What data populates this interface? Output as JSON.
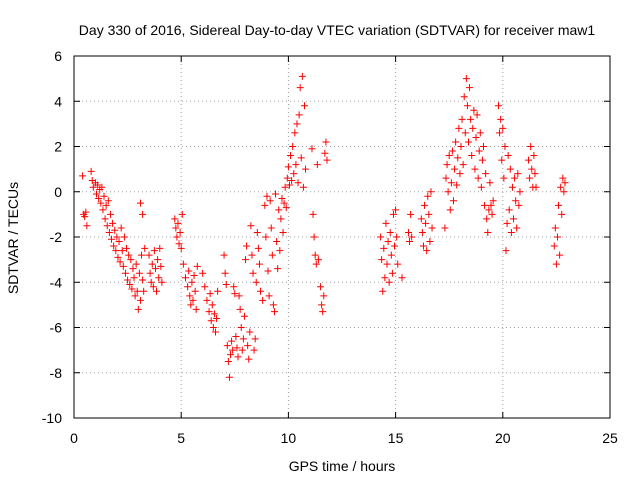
{
  "chart_data": {
    "type": "scatter",
    "title": "Day 330 of 2016, Sidereal Day-to-day VTEC variation (SDTVAR) for receiver maw1",
    "xlabel": "GPS time / hours",
    "ylabel": "SDTVAR / TECUs",
    "xlim": [
      0,
      25
    ],
    "ylim": [
      -10,
      6
    ],
    "xticks": [
      0,
      5,
      10,
      15,
      20,
      25
    ],
    "yticks": [
      -10,
      -8,
      -6,
      -4,
      -2,
      0,
      2,
      4,
      6
    ],
    "xtick_labels": [
      "0",
      "5",
      "10",
      "15",
      "20",
      "25"
    ],
    "ytick_labels": [
      "-10",
      "-8",
      "-6",
      "-4",
      "-2",
      "0",
      "2",
      "4",
      "6"
    ],
    "grid": true,
    "marker": "+",
    "color": "#ff0000",
    "series": [
      {
        "name": "maw1",
        "points": [
          [
            0.4,
            0.7
          ],
          [
            0.45,
            -1.0
          ],
          [
            0.5,
            -1.1
          ],
          [
            0.55,
            -0.9
          ],
          [
            0.6,
            -1.5
          ],
          [
            0.8,
            0.9
          ],
          [
            0.85,
            0.5
          ],
          [
            0.9,
            0.2
          ],
          [
            1.0,
            0.4
          ],
          [
            1.05,
            -0.1
          ],
          [
            1.1,
            0.3
          ],
          [
            1.15,
            -0.3
          ],
          [
            1.2,
            0.1
          ],
          [
            1.25,
            -0.5
          ],
          [
            1.3,
            0.2
          ],
          [
            1.35,
            -0.8
          ],
          [
            1.4,
            -0.2
          ],
          [
            1.45,
            -1.2
          ],
          [
            1.5,
            -0.6
          ],
          [
            1.55,
            -1.5
          ],
          [
            1.6,
            -0.4
          ],
          [
            1.65,
            -1.8
          ],
          [
            1.7,
            -1.0
          ],
          [
            1.75,
            -2.1
          ],
          [
            1.8,
            -1.4
          ],
          [
            1.85,
            -2.4
          ],
          [
            1.9,
            -1.7
          ],
          [
            1.95,
            -2.6
          ],
          [
            2.0,
            -2.0
          ],
          [
            2.05,
            -2.9
          ],
          [
            2.1,
            -2.2
          ],
          [
            2.15,
            -3.1
          ],
          [
            2.2,
            -1.6
          ],
          [
            2.25,
            -2.6
          ],
          [
            2.3,
            -3.3
          ],
          [
            2.35,
            -2.0
          ],
          [
            2.4,
            -3.6
          ],
          [
            2.45,
            -2.5
          ],
          [
            2.5,
            -3.9
          ],
          [
            2.55,
            -2.8
          ],
          [
            2.6,
            -4.1
          ],
          [
            2.65,
            -3.0
          ],
          [
            2.7,
            -4.3
          ],
          [
            2.75,
            -3.4
          ],
          [
            2.8,
            -3.8
          ],
          [
            2.85,
            -4.6
          ],
          [
            2.9,
            -3.2
          ],
          [
            2.95,
            -4.4
          ],
          [
            3.0,
            -5.2
          ],
          [
            3.05,
            -3.6
          ],
          [
            3.1,
            -4.8
          ],
          [
            3.15,
            -2.8
          ],
          [
            3.2,
            -3.9
          ],
          [
            3.25,
            -4.4
          ],
          [
            3.1,
            -0.5
          ],
          [
            3.2,
            -1.0
          ],
          [
            3.3,
            -2.5
          ],
          [
            3.5,
            -2.8
          ],
          [
            3.55,
            -3.6
          ],
          [
            3.6,
            -4.0
          ],
          [
            3.65,
            -3.2
          ],
          [
            3.7,
            -4.2
          ],
          [
            3.75,
            -2.6
          ],
          [
            3.8,
            -3.4
          ],
          [
            3.85,
            -4.4
          ],
          [
            3.9,
            -3.0
          ],
          [
            3.95,
            -3.8
          ],
          [
            4.0,
            -2.5
          ],
          [
            4.05,
            -3.3
          ],
          [
            4.1,
            -4.0
          ],
          [
            4.7,
            -1.2
          ],
          [
            4.75,
            -1.6
          ],
          [
            4.8,
            -2.0
          ],
          [
            4.85,
            -1.4
          ],
          [
            4.9,
            -2.3
          ],
          [
            4.95,
            -1.8
          ],
          [
            5.0,
            -2.5
          ],
          [
            5.05,
            -1.0
          ],
          [
            5.1,
            -3.2
          ],
          [
            5.2,
            -3.8
          ],
          [
            5.3,
            -4.2
          ],
          [
            5.35,
            -3.5
          ],
          [
            5.4,
            -4.6
          ],
          [
            5.45,
            -5.0
          ],
          [
            5.5,
            -4.0
          ],
          [
            5.55,
            -4.8
          ],
          [
            5.6,
            -3.7
          ],
          [
            5.65,
            -4.4
          ],
          [
            5.7,
            -5.2
          ],
          [
            5.75,
            -3.3
          ],
          [
            6.0,
            -3.6
          ],
          [
            6.1,
            -4.2
          ],
          [
            6.2,
            -4.8
          ],
          [
            6.3,
            -5.3
          ],
          [
            6.35,
            -4.5
          ],
          [
            6.4,
            -5.7
          ],
          [
            6.45,
            -5.0
          ],
          [
            6.5,
            -6.0
          ],
          [
            6.55,
            -5.4
          ],
          [
            6.6,
            -6.2
          ],
          [
            6.65,
            -5.6
          ],
          [
            6.7,
            -4.4
          ],
          [
            7.0,
            -2.8
          ],
          [
            7.05,
            -3.6
          ],
          [
            7.1,
            -4.1
          ],
          [
            7.15,
            -6.8
          ],
          [
            7.2,
            -7.5
          ],
          [
            7.25,
            -8.2
          ],
          [
            7.3,
            -7.2
          ],
          [
            7.35,
            -6.6
          ],
          [
            7.4,
            -7.0
          ],
          [
            7.45,
            -4.2
          ],
          [
            7.5,
            -4.5
          ],
          [
            7.55,
            -6.4
          ],
          [
            7.6,
            -6.9
          ],
          [
            7.65,
            -7.3
          ],
          [
            7.7,
            -4.6
          ],
          [
            7.75,
            -5.2
          ],
          [
            7.8,
            -6.0
          ],
          [
            7.85,
            -7.0
          ],
          [
            7.9,
            -6.5
          ],
          [
            7.95,
            -5.5
          ],
          [
            8.0,
            -3.0
          ],
          [
            8.05,
            -2.4
          ],
          [
            8.1,
            -6.8
          ],
          [
            8.15,
            -7.4
          ],
          [
            8.2,
            -6.2
          ],
          [
            8.25,
            -1.5
          ],
          [
            8.3,
            -2.8
          ],
          [
            8.35,
            -3.6
          ],
          [
            8.4,
            -7.0
          ],
          [
            8.45,
            -6.5
          ],
          [
            8.5,
            -4.0
          ],
          [
            8.55,
            -1.8
          ],
          [
            8.6,
            -2.5
          ],
          [
            8.65,
            -3.2
          ],
          [
            8.7,
            -4.4
          ],
          [
            8.8,
            -4.8
          ],
          [
            8.9,
            -0.6
          ],
          [
            8.95,
            -2.0
          ],
          [
            9.0,
            -0.2
          ],
          [
            9.05,
            -3.5
          ],
          [
            9.1,
            -4.6
          ],
          [
            9.15,
            -0.4
          ],
          [
            9.2,
            -1.6
          ],
          [
            9.25,
            -2.8
          ],
          [
            9.3,
            -5.0
          ],
          [
            9.35,
            -5.3
          ],
          [
            9.4,
            -0.1
          ],
          [
            9.45,
            -2.2
          ],
          [
            9.5,
            -3.4
          ],
          [
            9.55,
            -0.8
          ],
          [
            9.6,
            -2.6
          ],
          [
            9.65,
            -1.2
          ],
          [
            9.7,
            -0.3
          ],
          [
            9.75,
            -1.8
          ],
          [
            9.8,
            -0.5
          ],
          [
            9.85,
            0.2
          ],
          [
            9.9,
            -0.7
          ],
          [
            9.95,
            0.6
          ],
          [
            10.0,
            1.1
          ],
          [
            10.05,
            0.3
          ],
          [
            10.1,
            1.6
          ],
          [
            10.15,
            0.5
          ],
          [
            10.2,
            2.0
          ],
          [
            10.25,
            0.8
          ],
          [
            10.3,
            2.6
          ],
          [
            10.35,
            1.2
          ],
          [
            10.4,
            3.0
          ],
          [
            10.45,
            0.4
          ],
          [
            10.5,
            3.4
          ],
          [
            10.55,
            4.6
          ],
          [
            10.6,
            1.5
          ],
          [
            10.65,
            5.1
          ],
          [
            10.7,
            0.2
          ],
          [
            10.75,
            3.8
          ],
          [
            10.8,
            1.0
          ],
          [
            11.1,
            1.9
          ],
          [
            11.15,
            -1.0
          ],
          [
            11.2,
            -2.0
          ],
          [
            11.25,
            -2.8
          ],
          [
            11.3,
            -3.2
          ],
          [
            11.35,
            1.2
          ],
          [
            11.4,
            -3.0
          ],
          [
            11.5,
            -4.2
          ],
          [
            11.55,
            -5.0
          ],
          [
            11.6,
            -5.3
          ],
          [
            11.65,
            -4.6
          ],
          [
            11.7,
            1.7
          ],
          [
            11.75,
            2.2
          ],
          [
            11.8,
            1.4
          ],
          [
            14.3,
            -2.0
          ],
          [
            14.35,
            -3.0
          ],
          [
            14.4,
            -4.4
          ],
          [
            14.45,
            -2.5
          ],
          [
            14.5,
            -3.8
          ],
          [
            14.55,
            -1.4
          ],
          [
            14.6,
            -3.2
          ],
          [
            14.65,
            -2.2
          ],
          [
            14.7,
            -4.0
          ],
          [
            14.75,
            -1.8
          ],
          [
            14.8,
            -2.8
          ],
          [
            14.85,
            -3.6
          ],
          [
            14.9,
            -1.0
          ],
          [
            14.95,
            -2.4
          ],
          [
            15.0,
            -0.8
          ],
          [
            15.05,
            -2.0
          ],
          [
            15.1,
            -3.2
          ],
          [
            15.3,
            -3.8
          ],
          [
            15.6,
            -1.8
          ],
          [
            15.65,
            -2.2
          ],
          [
            15.7,
            -1.0
          ],
          [
            15.75,
            -2.0
          ],
          [
            16.2,
            -1.2
          ],
          [
            16.25,
            -1.8
          ],
          [
            16.3,
            -2.4
          ],
          [
            16.35,
            -0.6
          ],
          [
            16.4,
            -1.4
          ],
          [
            16.45,
            -2.6
          ],
          [
            16.5,
            -0.2
          ],
          [
            16.55,
            -1.0
          ],
          [
            16.6,
            -2.2
          ],
          [
            16.65,
            0.0
          ],
          [
            16.7,
            -1.6
          ],
          [
            17.3,
            -1.6
          ],
          [
            17.35,
            0.6
          ],
          [
            17.4,
            1.2
          ],
          [
            17.45,
            0.0
          ],
          [
            17.5,
            1.6
          ],
          [
            17.55,
            -0.8
          ],
          [
            17.6,
            0.4
          ],
          [
            17.65,
            1.8
          ],
          [
            17.7,
            -0.4
          ],
          [
            17.75,
            1.0
          ],
          [
            17.8,
            2.2
          ],
          [
            17.85,
            0.3
          ],
          [
            17.9,
            1.5
          ],
          [
            17.95,
            2.8
          ],
          [
            18.0,
            0.8
          ],
          [
            18.05,
            2.0
          ],
          [
            18.1,
            3.2
          ],
          [
            18.15,
            1.2
          ],
          [
            18.2,
            4.2
          ],
          [
            18.25,
            2.6
          ],
          [
            18.3,
            5.0
          ],
          [
            18.35,
            3.8
          ],
          [
            18.4,
            2.2
          ],
          [
            18.45,
            4.6
          ],
          [
            18.5,
            3.2
          ],
          [
            18.55,
            1.6
          ],
          [
            18.6,
            2.8
          ],
          [
            18.65,
            3.6
          ],
          [
            18.7,
            1.0
          ],
          [
            18.75,
            2.4
          ],
          [
            18.8,
            3.4
          ],
          [
            18.85,
            0.6
          ],
          [
            18.9,
            1.8
          ],
          [
            18.95,
            2.6
          ],
          [
            19.0,
            0.2
          ],
          [
            19.05,
            1.4
          ],
          [
            19.1,
            2.0
          ],
          [
            19.15,
            -0.6
          ],
          [
            19.2,
            0.8
          ],
          [
            19.25,
            -1.2
          ],
          [
            19.3,
            -1.8
          ],
          [
            19.35,
            -0.8
          ],
          [
            19.4,
            0.4
          ],
          [
            19.45,
            -0.6
          ],
          [
            19.5,
            -1.0
          ],
          [
            19.55,
            -0.4
          ],
          [
            19.8,
            3.8
          ],
          [
            19.85,
            2.6
          ],
          [
            19.9,
            3.2
          ],
          [
            19.95,
            1.4
          ],
          [
            20.0,
            2.8
          ],
          [
            20.05,
            0.6
          ],
          [
            20.1,
            2.0
          ],
          [
            20.15,
            -2.6
          ],
          [
            20.2,
            -1.4
          ],
          [
            20.25,
            1.6
          ],
          [
            20.3,
            -0.8
          ],
          [
            20.35,
            1.0
          ],
          [
            20.4,
            -1.8
          ],
          [
            20.45,
            0.2
          ],
          [
            20.5,
            -1.2
          ],
          [
            20.55,
            0.6
          ],
          [
            20.6,
            -0.4
          ],
          [
            20.65,
            -1.6
          ],
          [
            20.7,
            0.8
          ],
          [
            20.75,
            -0.6
          ],
          [
            20.8,
            0.0
          ],
          [
            21.2,
            1.4
          ],
          [
            21.25,
            0.6
          ],
          [
            21.3,
            2.0
          ],
          [
            21.35,
            1.0
          ],
          [
            21.4,
            0.2
          ],
          [
            21.45,
            1.6
          ],
          [
            21.5,
            0.8
          ],
          [
            21.55,
            0.2
          ],
          [
            22.4,
            -2.4
          ],
          [
            22.45,
            -1.6
          ],
          [
            22.5,
            -3.2
          ],
          [
            22.55,
            -2.0
          ],
          [
            22.6,
            -0.6
          ],
          [
            22.65,
            -2.8
          ],
          [
            22.7,
            0.2
          ],
          [
            22.75,
            -1.0
          ],
          [
            22.8,
            0.6
          ],
          [
            22.85,
            0.0
          ],
          [
            22.9,
            0.4
          ]
        ]
      }
    ]
  }
}
